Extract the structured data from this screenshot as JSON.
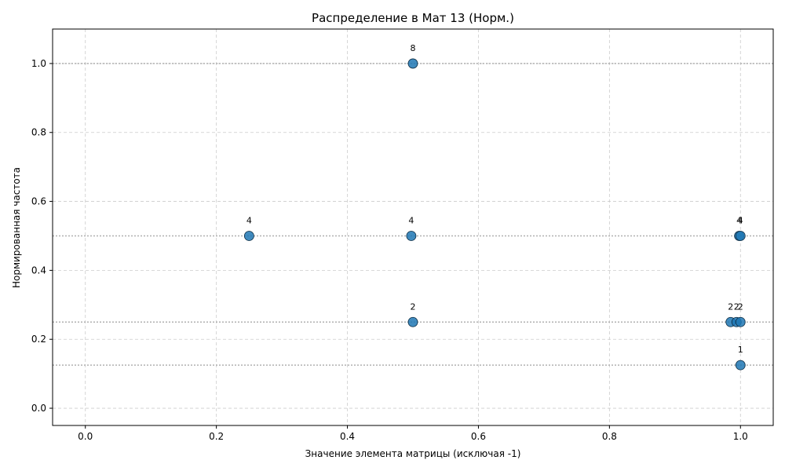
{
  "chart_data": {
    "type": "scatter",
    "title": "Распределение в Мат 13 (Норм.)",
    "xlabel": "Значение элемента матрицы (исключая -1)",
    "ylabel": "Нормированная частота",
    "xlim": [
      -0.05,
      1.05
    ],
    "ylim": [
      -0.05,
      1.1
    ],
    "xticks": [
      0.0,
      0.2,
      0.4,
      0.6,
      0.8,
      1.0
    ],
    "xtick_labels": [
      "0.0",
      "0.2",
      "0.4",
      "0.6",
      "0.8",
      "1.0"
    ],
    "yticks": [
      0.0,
      0.2,
      0.4,
      0.6,
      0.8,
      1.0
    ],
    "ytick_labels": [
      "0.0",
      "0.2",
      "0.4",
      "0.6",
      "0.8",
      "1.0"
    ],
    "grid": true,
    "reference_lines_y": [
      1.0,
      0.5,
      0.25,
      0.125
    ],
    "point_color": "#1f77b4",
    "points": [
      {
        "x": 0.5,
        "y": 1.0,
        "label": "8"
      },
      {
        "x": 0.25,
        "y": 0.5,
        "label": "4"
      },
      {
        "x": 0.4975,
        "y": 0.5,
        "label": "4"
      },
      {
        "x": 0.998,
        "y": 0.5,
        "label": "4"
      },
      {
        "x": 1.0,
        "y": 0.5,
        "label": "4"
      },
      {
        "x": 0.5,
        "y": 0.25,
        "label": "2"
      },
      {
        "x": 0.985,
        "y": 0.25,
        "label": "2"
      },
      {
        "x": 0.994,
        "y": 0.25,
        "label": "2"
      },
      {
        "x": 1.0,
        "y": 0.25,
        "label": "2"
      },
      {
        "x": 1.0,
        "y": 0.125,
        "label": "1"
      }
    ]
  }
}
